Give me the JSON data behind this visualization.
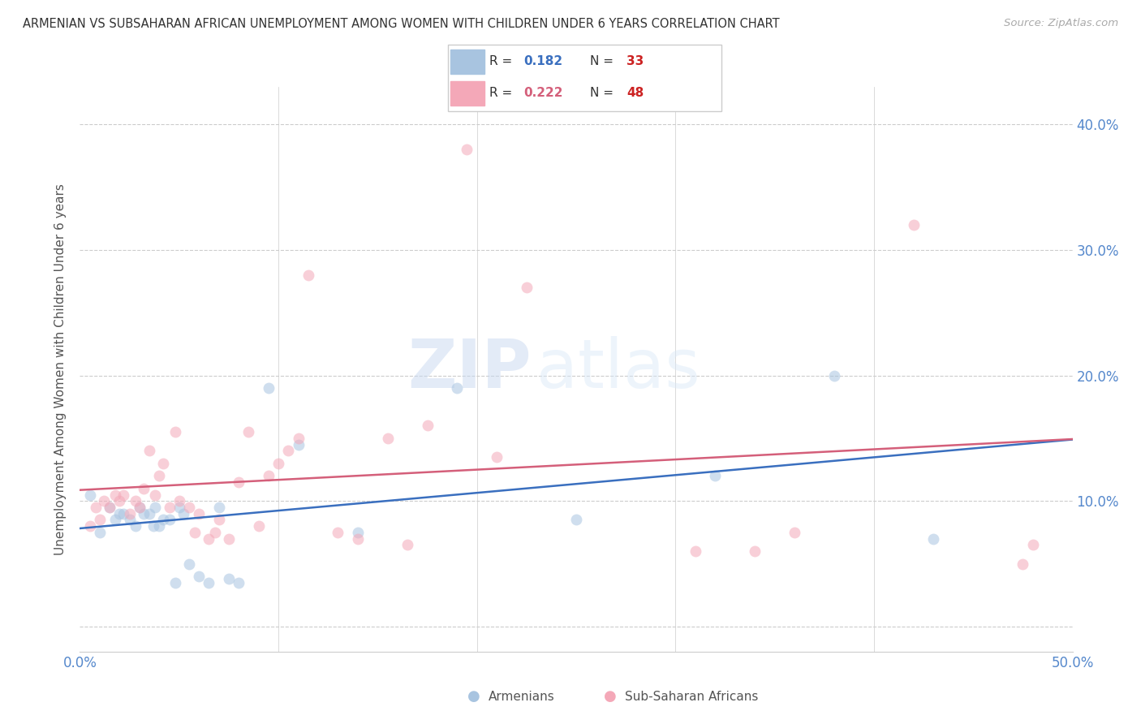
{
  "title": "ARMENIAN VS SUBSAHARAN AFRICAN UNEMPLOYMENT AMONG WOMEN WITH CHILDREN UNDER 6 YEARS CORRELATION CHART",
  "source": "Source: ZipAtlas.com",
  "ylabel": "Unemployment Among Women with Children Under 6 years",
  "xlim": [
    0.0,
    0.5
  ],
  "ylim": [
    -0.02,
    0.43
  ],
  "yticks": [
    0.0,
    0.1,
    0.2,
    0.3,
    0.4
  ],
  "ytick_labels": [
    "",
    "10.0%",
    "20.0%",
    "30.0%",
    "40.0%"
  ],
  "xticks": [
    0.0,
    0.1,
    0.2,
    0.3,
    0.4,
    0.5
  ],
  "xtick_labels": [
    "0.0%",
    "",
    "",
    "",
    "",
    "50.0%"
  ],
  "armenian_color": "#a8c4e0",
  "subsaharan_color": "#f4a8b8",
  "armenian_line_color": "#3a6fbf",
  "subsaharan_line_color": "#d45f7a",
  "legend_R_armenian": "0.182",
  "legend_N_armenian": "33",
  "legend_R_subsaharan": "0.222",
  "legend_N_subsaharan": "48",
  "watermark_zip": "ZIP",
  "watermark_atlas": "atlas",
  "armenian_x": [
    0.005,
    0.01,
    0.015,
    0.018,
    0.02,
    0.022,
    0.025,
    0.028,
    0.03,
    0.032,
    0.035,
    0.037,
    0.038,
    0.04,
    0.042,
    0.045,
    0.048,
    0.05,
    0.052,
    0.055,
    0.06,
    0.065,
    0.07,
    0.075,
    0.08,
    0.095,
    0.11,
    0.14,
    0.19,
    0.25,
    0.32,
    0.38,
    0.43
  ],
  "armenian_y": [
    0.105,
    0.075,
    0.095,
    0.085,
    0.09,
    0.09,
    0.085,
    0.08,
    0.095,
    0.09,
    0.09,
    0.08,
    0.095,
    0.08,
    0.085,
    0.085,
    0.035,
    0.095,
    0.09,
    0.05,
    0.04,
    0.035,
    0.095,
    0.038,
    0.035,
    0.19,
    0.145,
    0.075,
    0.19,
    0.085,
    0.12,
    0.2,
    0.07
  ],
  "subsaharan_x": [
    0.005,
    0.008,
    0.01,
    0.012,
    0.015,
    0.018,
    0.02,
    0.022,
    0.025,
    0.028,
    0.03,
    0.032,
    0.035,
    0.038,
    0.04,
    0.042,
    0.045,
    0.048,
    0.05,
    0.055,
    0.058,
    0.06,
    0.065,
    0.068,
    0.07,
    0.075,
    0.08,
    0.085,
    0.09,
    0.095,
    0.1,
    0.105,
    0.11,
    0.115,
    0.13,
    0.14,
    0.155,
    0.165,
    0.175,
    0.195,
    0.21,
    0.225,
    0.31,
    0.34,
    0.36,
    0.42,
    0.475,
    0.48
  ],
  "subsaharan_y": [
    0.08,
    0.095,
    0.085,
    0.1,
    0.095,
    0.105,
    0.1,
    0.105,
    0.09,
    0.1,
    0.095,
    0.11,
    0.14,
    0.105,
    0.12,
    0.13,
    0.095,
    0.155,
    0.1,
    0.095,
    0.075,
    0.09,
    0.07,
    0.075,
    0.085,
    0.07,
    0.115,
    0.155,
    0.08,
    0.12,
    0.13,
    0.14,
    0.15,
    0.28,
    0.075,
    0.07,
    0.15,
    0.065,
    0.16,
    0.38,
    0.135,
    0.27,
    0.06,
    0.06,
    0.075,
    0.32,
    0.05,
    0.065
  ],
  "background_color": "#ffffff",
  "grid_color": "#cccccc",
  "title_color": "#333333",
  "axis_label_color": "#5588cc",
  "marker_size": 100,
  "marker_alpha": 0.55,
  "line_width": 1.8
}
